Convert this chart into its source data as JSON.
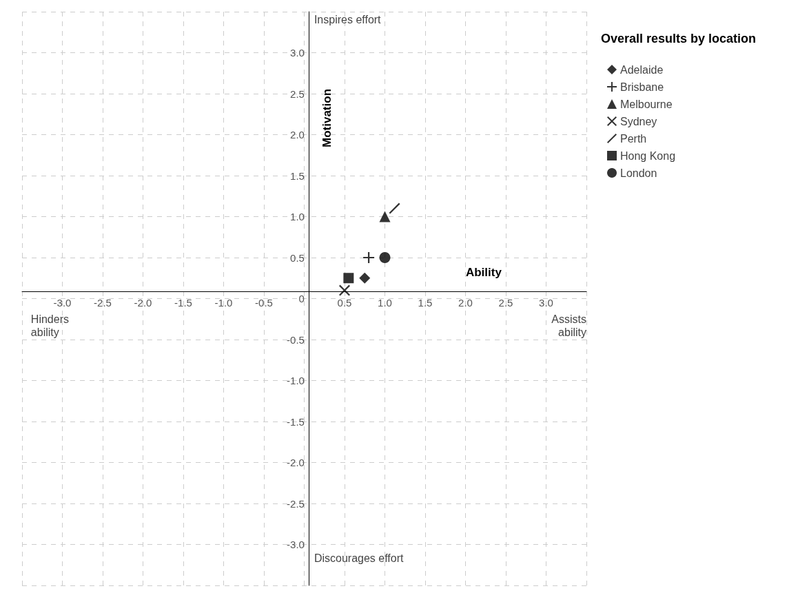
{
  "chart_data": {
    "type": "scatter",
    "xlabel": "Ability",
    "ylabel": "Motivation",
    "legend_title": "Overall results by location",
    "legend": "top right",
    "grid": true,
    "xlim": [
      -3.5,
      3.5
    ],
    "ylim": [
      -3.5,
      3.5
    ],
    "xticks": [
      {
        "value": -3.5,
        "label": null
      },
      {
        "value": -3,
        "label": "-3.0"
      },
      {
        "value": -2.5,
        "label": "-2.5"
      },
      {
        "value": -2,
        "label": "-2.0"
      },
      {
        "value": -1.5,
        "label": "-1.5"
      },
      {
        "value": -1,
        "label": "-1.0"
      },
      {
        "value": -0.5,
        "label": "-0.5"
      },
      {
        "value": 0,
        "label": null
      },
      {
        "value": 0.5,
        "label": "0.5"
      },
      {
        "value": 1,
        "label": "1.0"
      },
      {
        "value": 1.5,
        "label": "1.5"
      },
      {
        "value": 2,
        "label": "2.0"
      },
      {
        "value": 2.5,
        "label": "2.5"
      },
      {
        "value": 3,
        "label": "3.0"
      },
      {
        "value": 3.5,
        "label": null
      }
    ],
    "yticks": [
      {
        "value": -3.5,
        "label": null
      },
      {
        "value": -3,
        "label": "-3.0"
      },
      {
        "value": -2.5,
        "label": "-2.5"
      },
      {
        "value": -2,
        "label": "-2.0"
      },
      {
        "value": -1.5,
        "label": "-1.5"
      },
      {
        "value": -1,
        "label": "-1.0"
      },
      {
        "value": -0.5,
        "label": "-0.5"
      },
      0,
      {
        "value": 0.5,
        "label": "0.5"
      },
      {
        "value": 1,
        "label": "1.0"
      },
      {
        "value": 1.5,
        "label": "1.5"
      },
      {
        "value": 2,
        "label": "2.0"
      },
      {
        "value": 2.5,
        "label": "2.5"
      },
      {
        "value": 3,
        "label": "3.0"
      },
      {
        "value": 3.5,
        "label": null
      }
    ],
    "annotations": [
      "Inspires effort",
      "Discourages effort",
      "Hinders\nability",
      "Assists\nability"
    ],
    "series": [
      {
        "name": "Adelaide",
        "color": "#000000",
        "marker": "diamond",
        "x": [
          0.75
        ],
        "values": [
          0.25
        ]
      },
      {
        "name": "Brisbane",
        "color": "#000000",
        "marker": "plus",
        "x": [
          0.8
        ],
        "values": [
          0.5
        ]
      },
      {
        "name": "Melbourne",
        "color": "#000000",
        "marker": "triangle",
        "x": [
          1.0
        ],
        "values": [
          1.0
        ]
      },
      {
        "name": "Sydney",
        "color": "#000000",
        "marker": "x",
        "x": [
          0.5
        ],
        "values": [
          0.1
        ]
      },
      {
        "name": "Perth",
        "color": "#000000",
        "x": [
          1.12
        ],
        "values": [
          1.1
        ]
      },
      {
        "name": "Hong Kong",
        "color": "#000000",
        "marker": "square",
        "x": [
          0.55
        ],
        "values": [
          0.25
        ]
      },
      {
        "name": "London",
        "color": "#000000",
        "marker": "circle",
        "x": [
          1.0
        ],
        "values": [
          0.5
        ]
      }
    ]
  }
}
